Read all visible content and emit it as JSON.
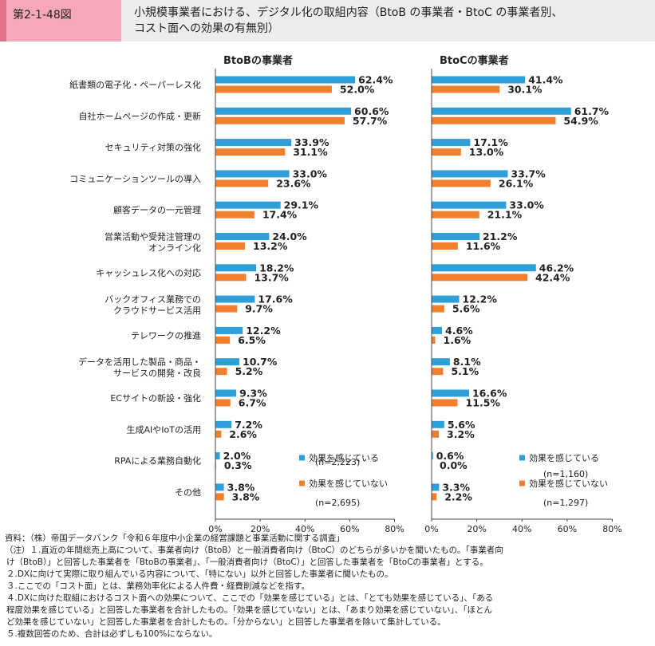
{
  "header": {
    "fig_number": "第2-1-48図",
    "title_line1": "小規模事業者における、デジタル化の取組内容（BtoB の事業者・BtoC の事業者別、",
    "title_line2": "コスト面への効果の有無別）"
  },
  "chart_data": [
    {
      "type": "bar",
      "orientation": "horizontal",
      "title": "BtoBの事業者",
      "categories": [
        [
          "紙書類の電子化・ペーパーレス化"
        ],
        [
          "自社ホームページの作成・更新"
        ],
        [
          "セキュリティ対策の強化"
        ],
        [
          "コミュニケーションツールの導入"
        ],
        [
          "顧客データの一元管理"
        ],
        [
          "営業活動や受発注管理の",
          "オンライン化"
        ],
        [
          "キャッシュレス化への対応"
        ],
        [
          "バックオフィス業務での",
          "クラウドサービス活用"
        ],
        [
          "テレワークの推進"
        ],
        [
          "データを活用した製品・商品・",
          "サービスの開発・改良"
        ],
        [
          "ECサイトの新設・強化"
        ],
        [
          "生成AIやIoTの活用"
        ],
        [
          "RPAによる業務自動化"
        ],
        [
          "その他"
        ]
      ],
      "series": [
        {
          "name": "効果を感じている",
          "n": "(n=2,223)",
          "color": "#2e9fd8",
          "values": [
            62.4,
            60.6,
            33.9,
            33.0,
            29.1,
            24.0,
            18.2,
            17.6,
            12.2,
            10.7,
            9.3,
            7.2,
            2.0,
            3.8
          ],
          "labels": [
            "62.4%",
            "60.6%",
            "33.9%",
            "33.0%",
            "29.1%",
            "24.0%",
            "18.2%",
            "17.6%",
            "12.2%",
            "10.7%",
            "9.3%",
            "7.2%",
            "2.0%",
            "3.8%"
          ]
        },
        {
          "name": "効果を感じていない",
          "n": "(n=2,695)",
          "color": "#f27f2d",
          "values": [
            52.0,
            57.7,
            31.1,
            23.6,
            17.4,
            13.2,
            13.7,
            9.7,
            6.5,
            5.2,
            6.7,
            2.6,
            0.3,
            3.8
          ],
          "labels": [
            "52.0%",
            "57.7%",
            "31.1%",
            "23.6%",
            "17.4%",
            "13.2%",
            "13.7%",
            "9.7%",
            "6.5%",
            "5.2%",
            "6.7%",
            "2.6%",
            "0.3%",
            "3.8%"
          ]
        }
      ],
      "xlim": [
        0,
        80
      ],
      "ticks": [
        "0%",
        "20%",
        "40%",
        "60%",
        "80%"
      ]
    },
    {
      "type": "bar",
      "orientation": "horizontal",
      "title": "BtoCの事業者",
      "series": [
        {
          "name": "効果を感じている",
          "n": "(n=1,160)",
          "color": "#2e9fd8",
          "values": [
            41.4,
            61.7,
            17.1,
            33.7,
            33.0,
            21.2,
            46.2,
            12.2,
            4.6,
            8.1,
            16.6,
            5.6,
            0.6,
            3.3
          ],
          "labels": [
            "41.4%",
            "61.7%",
            "17.1%",
            "33.7%",
            "33.0%",
            "21.2%",
            "46.2%",
            "12.2%",
            "4.6%",
            "8.1%",
            "16.6%",
            "5.6%",
            "0.6%",
            "3.3%"
          ]
        },
        {
          "name": "効果を感じていない",
          "n": "(n=1,297)",
          "color": "#f27f2d",
          "values": [
            30.1,
            54.9,
            13.0,
            26.1,
            21.1,
            11.6,
            42.4,
            5.6,
            1.6,
            5.1,
            11.5,
            3.2,
            0.0,
            2.2
          ],
          "labels": [
            "30.1%",
            "54.9%",
            "13.0%",
            "26.1%",
            "21.1%",
            "11.6%",
            "42.4%",
            "5.6%",
            "1.6%",
            "5.1%",
            "11.5%",
            "3.2%",
            "0.0%",
            "2.2%"
          ]
        }
      ],
      "xlim": [
        0,
        80
      ],
      "ticks": [
        "0%",
        "20%",
        "40%",
        "60%",
        "80%"
      ]
    }
  ],
  "notes": [
    "資料：（株）帝国データバンク「令和６年度中小企業の経営課題と事業活動に関する調査」",
    "（注）１.直近の年間総売上高について、事業者向け（BtoB）と一般消費者向け（BtoC）のどちらが多いかを聞いたもの。「事業者向",
    "け（BtoB）」と回答した事業者を「BtoBの事業者」、「一般消費者向け（BtoC）」と回答した事業者を「BtoCの事業者」とする。",
    "２.DXに向けて実際に取り組んでいる内容について、「特にない」以外と回答した事業者に聞いたもの。",
    "３.ここでの「コスト面」とは、業務効率化による人件費・経費削減などを指す。",
    "４.DXに向けた取組におけるコスト面への効果について、ここでの「効果を感じている」とは、「とても効果を感じている」、「ある",
    "程度効果を感じている」と回答した事業者を合計したもの。「効果を感じていない」とは、「あまり効果を感じていない」、「ほとん",
    "ど効果を感じていない」と回答した事業者を合計したもの。「分からない」と回答した事業者を除いて集計している。",
    "５.複数回答のため、合計は必ずしも100%にならない。"
  ]
}
